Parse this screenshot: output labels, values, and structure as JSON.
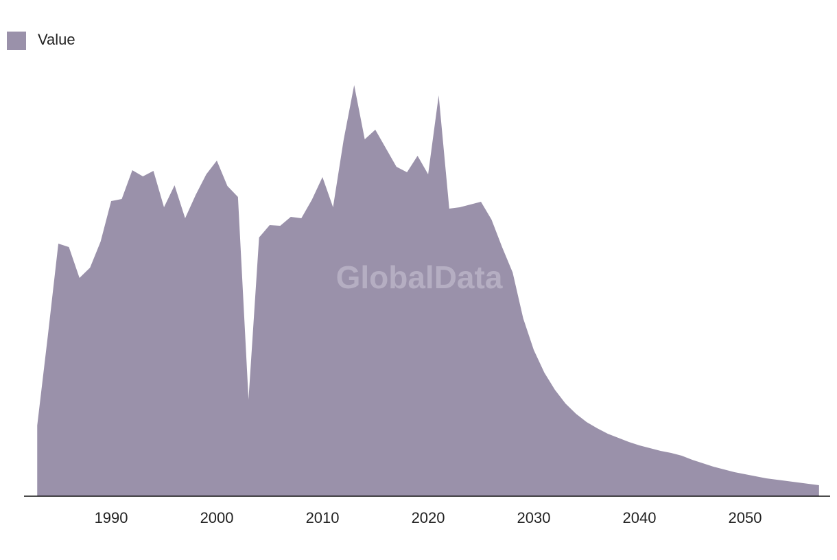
{
  "chart_data": {
    "type": "area",
    "x": [
      1983,
      1984,
      1985,
      1986,
      1987,
      1988,
      1989,
      1990,
      1991,
      1992,
      1993,
      1994,
      1995,
      1996,
      1997,
      1998,
      1999,
      2000,
      2001,
      2002,
      2003,
      2004,
      2005,
      2006,
      2007,
      2008,
      2009,
      2010,
      2011,
      2012,
      2013,
      2014,
      2015,
      2016,
      2017,
      2018,
      2019,
      2020,
      2021,
      2022,
      2023,
      2024,
      2025,
      2026,
      2027,
      2028,
      2029,
      2030,
      2031,
      2032,
      2033,
      2034,
      2035,
      2036,
      2037,
      2038,
      2039,
      2040,
      2041,
      2042,
      2043,
      2044,
      2045,
      2046,
      2047,
      2048,
      2049,
      2050,
      2051,
      2052,
      2053,
      2054,
      2055,
      2056,
      2057
    ],
    "series": [
      {
        "name": "Value",
        "color": "#9a91aa",
        "values": [
          103,
          233,
          368,
          363,
          318,
          333,
          371,
          430,
          433,
          475,
          466,
          474,
          421,
          453,
          405,
          439,
          469,
          489,
          452,
          436,
          141,
          377,
          395,
          394,
          407,
          405,
          432,
          465,
          421,
          519,
          599,
          520,
          534,
          507,
          480,
          472,
          496,
          469,
          584,
          419,
          421,
          425,
          429,
          403,
          363,
          326,
          259,
          213,
          180,
          155,
          135,
          120,
          108,
          99,
          91,
          85,
          79,
          74,
          70,
          66,
          63,
          59,
          53,
          48,
          43,
          39,
          35,
          32,
          29,
          26,
          24,
          22,
          20,
          18,
          16
        ]
      }
    ],
    "xlim": [
      1981.75,
      2058.05
    ],
    "xticks": [
      1990,
      2000,
      2010,
      2020,
      2030,
      2040,
      2050
    ],
    "ylim": [
      0,
      620
    ],
    "legend": "top-left",
    "watermark": "GlobalData"
  }
}
